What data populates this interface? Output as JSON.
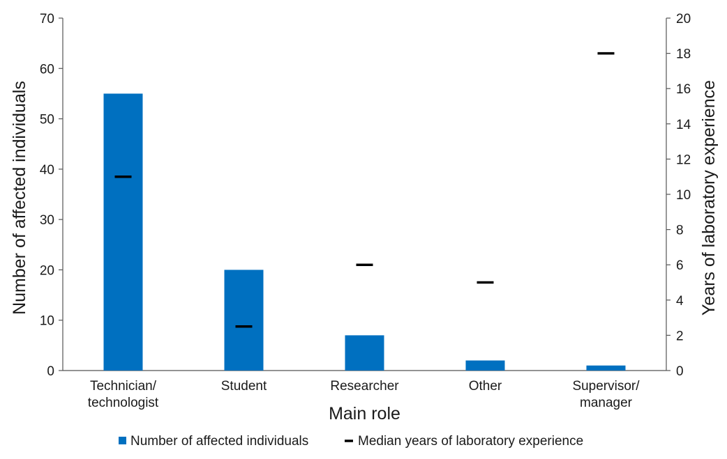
{
  "chart_data": {
    "type": "bar",
    "categories": [
      [
        "Technician/",
        "technologist"
      ],
      [
        "Student"
      ],
      [
        "Researcher"
      ],
      [
        "Other"
      ],
      [
        "Supervisor/",
        "manager"
      ]
    ],
    "series": [
      {
        "name": "Number of affected individuals",
        "kind": "bar",
        "axis": "left",
        "color": "#0070c0",
        "values": [
          55,
          20,
          7,
          2,
          1
        ]
      },
      {
        "name": "Median years of laboratory experience",
        "kind": "marker",
        "axis": "right",
        "color": "#000000",
        "values": [
          11,
          2.5,
          6,
          5,
          18
        ]
      }
    ],
    "xlabel": "Main role",
    "ylabel": "Number of affected individuals",
    "y2label": "Years of laboratory experience",
    "ylim": [
      0,
      70
    ],
    "yticks": [
      "0",
      "10",
      "20",
      "30",
      "40",
      "50",
      "60",
      "70"
    ],
    "y2lim": [
      0,
      20
    ],
    "y2ticks": [
      "0",
      "2",
      "4",
      "6",
      "8",
      "10",
      "12",
      "14",
      "16",
      "18",
      "20"
    ],
    "grid": false,
    "legend_position": "bottom"
  }
}
